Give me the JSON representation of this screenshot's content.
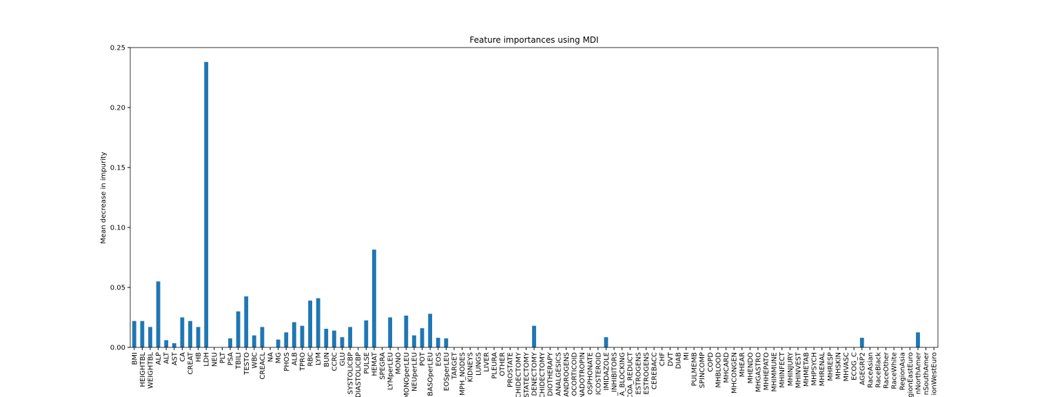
{
  "chart_data": {
    "type": "bar",
    "title": "Feature importances using MDI",
    "y_label": "Mean decrease in impurity",
    "categories": [
      "BMI",
      "HEIGHTBL",
      "WEIGHTBL",
      "ALP",
      "ALT",
      "AST",
      "CA",
      "CREAT",
      "HB",
      "LDH",
      "NEU",
      "PLT",
      "PSA",
      "TBILI",
      "TESTO",
      "WBC",
      "CREACL",
      "NA",
      "MG",
      "PHOS",
      "ALB",
      "TPRO",
      "RBC",
      "LYM",
      "BUN",
      "CCRC",
      "GLU",
      "SYSTOLICBP",
      "DIASTOLICBP",
      "PULSE",
      "HEMAT",
      "SPEGRA",
      "LYMperLEU",
      "MONO",
      "MONOperLEU",
      "NEUperLEU",
      "POT",
      "BASOperLEU",
      "EOS",
      "EOSperLEU",
      "TARGET",
      "MPH_NODES",
      "KIDNEYS",
      "LUNGS",
      "LIVER",
      "PLEURA",
      "OTHER",
      "PROSTATE",
      "CHIDECTOMY",
      "STATECTOMY",
      "DENECTOMY",
      "CHIDECTOMY",
      "DIOTHERAPY",
      "ANALGESICS",
      "ANDROGENS",
      "OCORTICOID",
      "NADOTROPIN",
      "OSPHONATE",
      "ICOSTEROID",
      "IMIDAZOLE",
      "_INHIBITORS",
      "A_BLOCKING",
      "COA_REDUCT",
      "ESTROGENS",
      "ESTROGENS",
      "CEREBACC",
      "CHF",
      "DVT",
      "DIAB",
      "MI",
      "PULMEMB",
      "SPINCOMP",
      "COPD",
      "MHBLOOD",
      "MHCARD",
      "MHCONGEN",
      "MHEAR",
      "MHENDO",
      "MHGASTRO",
      "MHHEPATO",
      "MHIMMUNE",
      "MHINFECT",
      "MHINJURY",
      "MHINVEST",
      "MHMETAB",
      "MHPSYCH",
      "MHRENAL",
      "MHRESP",
      "MHSKIN",
      "MHVASC",
      "ECOG_C",
      "AGEGRP2",
      "RaceAsian",
      "RaceBlack",
      "RaceOther",
      "RaceWhite",
      "RegionAsia",
      "gionEastEuro",
      "nNorthAmer",
      "nSouthAmer",
      "ionWestEuro"
    ],
    "values": [
      0.022,
      0.022,
      0.017,
      0.055,
      0.006,
      0.0035,
      0.025,
      0.022,
      0.017,
      0.238,
      0,
      0,
      0.0075,
      0.03,
      0.0425,
      0.01,
      0.017,
      0,
      0.0065,
      0.0125,
      0.021,
      0.018,
      0.039,
      0.041,
      0.0155,
      0.014,
      0.0085,
      0.017,
      0,
      0.0225,
      0.0815,
      0,
      0.025,
      0,
      0.0265,
      0.01,
      0.016,
      0.028,
      0.008,
      0.0075,
      0,
      0,
      0,
      0,
      0,
      0,
      0,
      0,
      0,
      0,
      0.018,
      0,
      0,
      0,
      0,
      0,
      0,
      0,
      0,
      0.0085,
      0,
      0,
      0,
      0,
      0,
      0,
      0,
      0,
      0,
      0,
      0,
      0,
      0,
      0,
      0,
      0,
      0,
      0,
      0,
      0,
      0,
      0,
      0,
      0,
      0,
      0,
      0,
      0,
      0,
      0,
      0,
      0.008,
      0,
      0,
      0,
      0,
      0,
      0,
      0.0125,
      0,
      0
    ],
    "color": "#1f77b4",
    "ylim": [
      0,
      0.25
    ],
    "yticks": [
      {
        "value": 0,
        "label": "0.00"
      },
      {
        "value": 0.05,
        "label": "0.05"
      },
      {
        "value": 0.1,
        "label": "0.10"
      },
      {
        "value": 0.15,
        "label": "0.15"
      },
      {
        "value": 0.2,
        "label": "0.20"
      },
      {
        "value": 0.25,
        "label": "0.25"
      }
    ],
    "grid": false
  }
}
